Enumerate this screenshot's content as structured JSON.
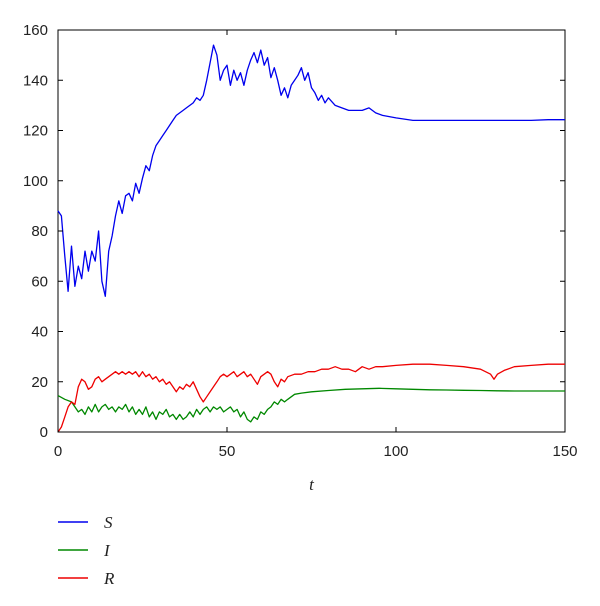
{
  "chart_data": {
    "type": "line",
    "title": "",
    "xlabel": "t",
    "ylabel": "",
    "xlim": [
      0,
      150
    ],
    "ylim": [
      0,
      160
    ],
    "xticks": [
      0,
      50,
      100,
      150
    ],
    "yticks": [
      0,
      20,
      40,
      60,
      80,
      100,
      120,
      140,
      160
    ],
    "grid": false,
    "legend": "below-left",
    "series": [
      {
        "name": "S",
        "color": "#0000ee",
        "points": [
          [
            0,
            88
          ],
          [
            1,
            86
          ],
          [
            2,
            70
          ],
          [
            3,
            56
          ],
          [
            4,
            74
          ],
          [
            5,
            58
          ],
          [
            6,
            66
          ],
          [
            7,
            61
          ],
          [
            8,
            72
          ],
          [
            9,
            64
          ],
          [
            10,
            72
          ],
          [
            11,
            68
          ],
          [
            12,
            80
          ],
          [
            13,
            60
          ],
          [
            14,
            54
          ],
          [
            15,
            72
          ],
          [
            16,
            78
          ],
          [
            17,
            86
          ],
          [
            18,
            92
          ],
          [
            19,
            87
          ],
          [
            20,
            94
          ],
          [
            21,
            95
          ],
          [
            22,
            92
          ],
          [
            23,
            99
          ],
          [
            24,
            95
          ],
          [
            25,
            101
          ],
          [
            26,
            106
          ],
          [
            27,
            104
          ],
          [
            28,
            110
          ],
          [
            29,
            114
          ],
          [
            30,
            116
          ],
          [
            31,
            118
          ],
          [
            32,
            120
          ],
          [
            33,
            122
          ],
          [
            34,
            124
          ],
          [
            35,
            126
          ],
          [
            36,
            127
          ],
          [
            37,
            128
          ],
          [
            38,
            129
          ],
          [
            39,
            130
          ],
          [
            40,
            131
          ],
          [
            41,
            133
          ],
          [
            42,
            132
          ],
          [
            43,
            134
          ],
          [
            44,
            140
          ],
          [
            45,
            147
          ],
          [
            46,
            154
          ],
          [
            47,
            150
          ],
          [
            48,
            140
          ],
          [
            49,
            144
          ],
          [
            50,
            146
          ],
          [
            51,
            138
          ],
          [
            52,
            144
          ],
          [
            53,
            140
          ],
          [
            54,
            143
          ],
          [
            55,
            138
          ],
          [
            56,
            144
          ],
          [
            57,
            148
          ],
          [
            58,
            151
          ],
          [
            59,
            147
          ],
          [
            60,
            152
          ],
          [
            61,
            146
          ],
          [
            62,
            149
          ],
          [
            63,
            141
          ],
          [
            64,
            145
          ],
          [
            65,
            140
          ],
          [
            66,
            134
          ],
          [
            67,
            137
          ],
          [
            68,
            133
          ],
          [
            69,
            138
          ],
          [
            70,
            140
          ],
          [
            71,
            142
          ],
          [
            72,
            145
          ],
          [
            73,
            140
          ],
          [
            74,
            143
          ],
          [
            75,
            137
          ],
          [
            76,
            135
          ],
          [
            77,
            132
          ],
          [
            78,
            134
          ],
          [
            79,
            131
          ],
          [
            80,
            133
          ],
          [
            82,
            130
          ],
          [
            84,
            129
          ],
          [
            86,
            128
          ],
          [
            88,
            128
          ],
          [
            90,
            128
          ],
          [
            92,
            129
          ],
          [
            94,
            127
          ],
          [
            96,
            126
          ],
          [
            100,
            125
          ],
          [
            105,
            124
          ],
          [
            110,
            124
          ],
          [
            115,
            124
          ],
          [
            120,
            124
          ],
          [
            125,
            124
          ],
          [
            130,
            124
          ],
          [
            135,
            124
          ],
          [
            140,
            124
          ],
          [
            145,
            124.3
          ],
          [
            150,
            124.3
          ]
        ]
      },
      {
        "name": "I",
        "color": "#008800",
        "points": [
          [
            0,
            14.5
          ],
          [
            2,
            13
          ],
          [
            4,
            12
          ],
          [
            5,
            10
          ],
          [
            6,
            8
          ],
          [
            7,
            9
          ],
          [
            8,
            7
          ],
          [
            9,
            10
          ],
          [
            10,
            8
          ],
          [
            11,
            11
          ],
          [
            12,
            8
          ],
          [
            13,
            10
          ],
          [
            14,
            11
          ],
          [
            15,
            9
          ],
          [
            16,
            10
          ],
          [
            17,
            8
          ],
          [
            18,
            10
          ],
          [
            19,
            9
          ],
          [
            20,
            11
          ],
          [
            21,
            8
          ],
          [
            22,
            10
          ],
          [
            23,
            7
          ],
          [
            24,
            9
          ],
          [
            25,
            7
          ],
          [
            26,
            10
          ],
          [
            27,
            6
          ],
          [
            28,
            8
          ],
          [
            29,
            5
          ],
          [
            30,
            8
          ],
          [
            31,
            7
          ],
          [
            32,
            9
          ],
          [
            33,
            6
          ],
          [
            34,
            7
          ],
          [
            35,
            5
          ],
          [
            36,
            7
          ],
          [
            37,
            5
          ],
          [
            38,
            6
          ],
          [
            39,
            8
          ],
          [
            40,
            6
          ],
          [
            41,
            9
          ],
          [
            42,
            7
          ],
          [
            43,
            9
          ],
          [
            44,
            10
          ],
          [
            45,
            8
          ],
          [
            46,
            10
          ],
          [
            47,
            9
          ],
          [
            48,
            10
          ],
          [
            49,
            8
          ],
          [
            50,
            9
          ],
          [
            51,
            10
          ],
          [
            52,
            8
          ],
          [
            53,
            9
          ],
          [
            54,
            6
          ],
          [
            55,
            8
          ],
          [
            56,
            5
          ],
          [
            57,
            4
          ],
          [
            58,
            6
          ],
          [
            59,
            5
          ],
          [
            60,
            8
          ],
          [
            61,
            7
          ],
          [
            62,
            9
          ],
          [
            63,
            10
          ],
          [
            64,
            12
          ],
          [
            65,
            11
          ],
          [
            66,
            13
          ],
          [
            67,
            12
          ],
          [
            68,
            13
          ],
          [
            70,
            15
          ],
          [
            72,
            15.5
          ],
          [
            75,
            16
          ],
          [
            80,
            16.5
          ],
          [
            85,
            17
          ],
          [
            90,
            17.2
          ],
          [
            95,
            17.4
          ],
          [
            100,
            17.2
          ],
          [
            105,
            17
          ],
          [
            110,
            16.8
          ],
          [
            115,
            16.7
          ],
          [
            120,
            16.6
          ],
          [
            125,
            16.5
          ],
          [
            130,
            16.4
          ],
          [
            135,
            16.3
          ],
          [
            140,
            16.3
          ],
          [
            145,
            16.3
          ],
          [
            150,
            16.3
          ]
        ]
      },
      {
        "name": "R",
        "color": "#ee0000",
        "points": [
          [
            0,
            0
          ],
          [
            1,
            2
          ],
          [
            2,
            6
          ],
          [
            3,
            10
          ],
          [
            4,
            12
          ],
          [
            5,
            11
          ],
          [
            6,
            18
          ],
          [
            7,
            21
          ],
          [
            8,
            20
          ],
          [
            9,
            17
          ],
          [
            10,
            18
          ],
          [
            11,
            21
          ],
          [
            12,
            22
          ],
          [
            13,
            20
          ],
          [
            14,
            21
          ],
          [
            15,
            22
          ],
          [
            16,
            23
          ],
          [
            17,
            24
          ],
          [
            18,
            23
          ],
          [
            19,
            24
          ],
          [
            20,
            23
          ],
          [
            21,
            24
          ],
          [
            22,
            23
          ],
          [
            23,
            24
          ],
          [
            24,
            22
          ],
          [
            25,
            24
          ],
          [
            26,
            22
          ],
          [
            27,
            23
          ],
          [
            28,
            21
          ],
          [
            29,
            22
          ],
          [
            30,
            20
          ],
          [
            31,
            21
          ],
          [
            32,
            19
          ],
          [
            33,
            20
          ],
          [
            34,
            18
          ],
          [
            35,
            16
          ],
          [
            36,
            18
          ],
          [
            37,
            17
          ],
          [
            38,
            19
          ],
          [
            39,
            18
          ],
          [
            40,
            20
          ],
          [
            41,
            17
          ],
          [
            42,
            14
          ],
          [
            43,
            12
          ],
          [
            44,
            14
          ],
          [
            45,
            16
          ],
          [
            46,
            18
          ],
          [
            47,
            20
          ],
          [
            48,
            22
          ],
          [
            49,
            23
          ],
          [
            50,
            22
          ],
          [
            51,
            23
          ],
          [
            52,
            24
          ],
          [
            53,
            22
          ],
          [
            54,
            23
          ],
          [
            55,
            24
          ],
          [
            56,
            22
          ],
          [
            57,
            23
          ],
          [
            58,
            21
          ],
          [
            59,
            19
          ],
          [
            60,
            22
          ],
          [
            61,
            23
          ],
          [
            62,
            24
          ],
          [
            63,
            23
          ],
          [
            64,
            20
          ],
          [
            65,
            18
          ],
          [
            66,
            21
          ],
          [
            67,
            20
          ],
          [
            68,
            22
          ],
          [
            70,
            23
          ],
          [
            72,
            23
          ],
          [
            74,
            24
          ],
          [
            76,
            24
          ],
          [
            78,
            25
          ],
          [
            80,
            25
          ],
          [
            82,
            26
          ],
          [
            84,
            25
          ],
          [
            86,
            25
          ],
          [
            88,
            24
          ],
          [
            90,
            26
          ],
          [
            92,
            25
          ],
          [
            94,
            26
          ],
          [
            96,
            26
          ],
          [
            100,
            26.5
          ],
          [
            105,
            27
          ],
          [
            110,
            27
          ],
          [
            115,
            26.5
          ],
          [
            120,
            26
          ],
          [
            125,
            25
          ],
          [
            128,
            23
          ],
          [
            129,
            21
          ],
          [
            130,
            23
          ],
          [
            132,
            24.5
          ],
          [
            135,
            26
          ],
          [
            140,
            26.5
          ],
          [
            145,
            27
          ],
          [
            150,
            27
          ]
        ]
      }
    ]
  }
}
